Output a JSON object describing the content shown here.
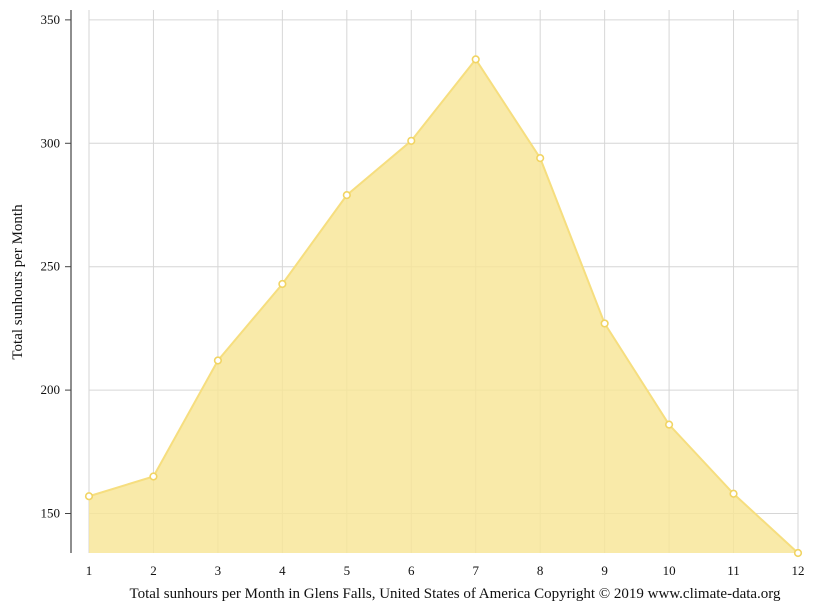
{
  "chart_data": {
    "type": "area",
    "x": [
      "1",
      "2",
      "3",
      "4",
      "5",
      "6",
      "7",
      "8",
      "9",
      "10",
      "11",
      "12"
    ],
    "values": [
      157,
      165,
      212,
      243,
      279,
      301,
      334,
      294,
      227,
      186,
      158,
      134
    ],
    "ylabel": "Total sunhours per Month",
    "caption": "Total sunhours per Month in Glens Falls, United States of America Copyright © 2019 www.climate-data.org",
    "yticks": [
      150,
      200,
      250,
      300,
      350
    ],
    "ylim": [
      134,
      354
    ],
    "grid": true,
    "colors": {
      "fill": "#f8e596",
      "line": "#f6de7f",
      "marker_stroke": "#f1d463",
      "marker_fill": "#ffffff",
      "grid": "#d6d6d6",
      "axis": "#444444"
    }
  }
}
